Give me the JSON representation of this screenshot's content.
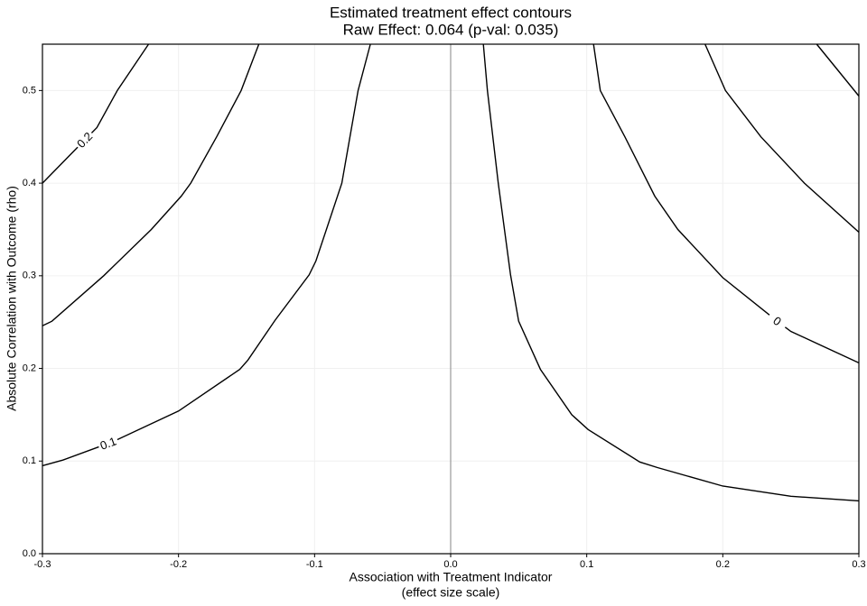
{
  "chart_data": {
    "type": "contour",
    "title": "Estimated treatment effect contours",
    "subtitle": "Raw Effect: 0.064 (p-val: 0.035)",
    "xlabel": "Association with Treatment Indicator",
    "xlabel_note": "(effect size scale)",
    "ylabel": "Absolute Correlation with Outcome (rho)",
    "xlim": [
      -0.3,
      0.3
    ],
    "ylim": [
      0,
      0.55
    ],
    "xticks": [
      -0.3,
      -0.2,
      -0.1,
      {
        "value": 0,
        "label": "0.0"
      },
      0.1,
      0.2,
      0.3
    ],
    "yticks": [
      {
        "value": 0,
        "label": "0.0"
      },
      0.1,
      0.2,
      0.3,
      0.4,
      0.5
    ],
    "grid": true,
    "reference_x": 0,
    "color": "#000000",
    "lines": [
      {
        "label": "0.2",
        "x": [
          -0.3,
          -0.278,
          -0.26,
          -0.245,
          -0.222
        ],
        "y": [
          0.4,
          0.433,
          0.46,
          0.5,
          0.55
        ]
      },
      {
        "x": [
          -0.3,
          -0.293,
          -0.255,
          -0.22,
          -0.198,
          -0.191,
          -0.172,
          -0.154,
          -0.141
        ],
        "y": [
          0.246,
          0.251,
          0.3,
          0.35,
          0.386,
          0.4,
          0.45,
          0.5,
          0.55
        ]
      },
      {
        "label": "0.1",
        "x": [
          -0.3,
          -0.285,
          -0.248,
          -0.2,
          -0.155,
          -0.149,
          -0.129,
          -0.104,
          -0.099,
          -0.08,
          -0.068,
          -0.059
        ],
        "y": [
          0.095,
          0.101,
          0.121,
          0.154,
          0.199,
          0.209,
          0.252,
          0.301,
          0.316,
          0.4,
          0.5,
          0.55
        ]
      },
      {
        "x": [
          0.024,
          0.027,
          0.035,
          0.044,
          0.05,
          0.066,
          0.089,
          0.101,
          0.139,
          0.152,
          0.2,
          0.25,
          0.3
        ],
        "y": [
          0.55,
          0.5,
          0.4,
          0.301,
          0.251,
          0.199,
          0.15,
          0.134,
          0.099,
          0.093,
          0.073,
          0.062,
          0.057
        ]
      },
      {
        "label": "0",
        "x": [
          0.105,
          0.11,
          0.128,
          0.15,
          0.167,
          0.2,
          0.24,
          0.25,
          0.3
        ],
        "y": [
          0.55,
          0.5,
          0.45,
          0.386,
          0.35,
          0.298,
          0.251,
          0.24,
          0.206
        ]
      },
      {
        "x": [
          0.187,
          0.202,
          0.228,
          0.26,
          0.3
        ],
        "y": [
          0.55,
          0.5,
          0.45,
          0.4,
          0.347
        ]
      },
      {
        "x": [
          0.269,
          0.3
        ],
        "y": [
          0.55,
          0.494
        ]
      }
    ]
  }
}
